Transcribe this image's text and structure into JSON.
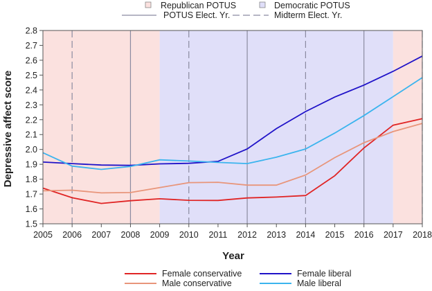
{
  "chart_data": {
    "type": "line",
    "title": "",
    "xlabel": "Year",
    "ylabel": "Depressive affect score",
    "x": [
      2005,
      2006,
      2007,
      2008,
      2009,
      2010,
      2011,
      2012,
      2013,
      2014,
      2015,
      2016,
      2017,
      2018
    ],
    "xlim": [
      2005,
      2018
    ],
    "ylim": [
      1.5,
      2.8
    ],
    "yticks": [
      "1.5",
      "1.6",
      "1.7",
      "1.8",
      "1.9",
      "2.0",
      "2.1",
      "2.2",
      "2.3",
      "2.4",
      "2.5",
      "2.6",
      "2.7",
      "2.8"
    ],
    "grid": false,
    "legend_position": "bottom",
    "series": [
      {
        "name": "Female conservative",
        "color": "#e02424",
        "values": [
          1.74,
          1.675,
          1.637,
          1.655,
          1.668,
          1.658,
          1.657,
          1.674,
          1.68,
          1.69,
          1.823,
          2.01,
          2.163,
          2.207
        ]
      },
      {
        "name": "Male conservative",
        "color": "#e8957a",
        "values": [
          1.722,
          1.726,
          1.708,
          1.71,
          1.743,
          1.777,
          1.779,
          1.76,
          1.76,
          1.828,
          1.945,
          2.045,
          2.12,
          2.175
        ]
      },
      {
        "name": "Female liberal",
        "color": "#1f12c8",
        "values": [
          1.915,
          1.905,
          1.895,
          1.893,
          1.903,
          1.907,
          1.92,
          2.003,
          2.14,
          2.255,
          2.352,
          2.433,
          2.525,
          2.628
        ]
      },
      {
        "name": "Male liberal",
        "color": "#3bb4ee",
        "values": [
          1.978,
          1.888,
          1.866,
          1.886,
          1.93,
          1.922,
          1.913,
          1.905,
          1.948,
          2.003,
          2.11,
          2.228,
          2.355,
          2.483
        ]
      }
    ],
    "shading": [
      {
        "label": "Republican POTUS",
        "color": "#fbe1df",
        "from": 2005,
        "to": 2009
      },
      {
        "label": "Democratic POTUS",
        "color": "#e0dff9",
        "from": 2009,
        "to": 2017
      },
      {
        "label": "Republican POTUS",
        "color": "#fbe1df",
        "from": 2017,
        "to": 2018
      }
    ],
    "presidential_election_years": [
      2008,
      2012,
      2016
    ],
    "midterm_election_years": [
      2006,
      2010,
      2014,
      2018
    ],
    "top_legend": {
      "republican": "Republican POTUS",
      "democratic": "Democratic POTUS",
      "potus_elect": "POTUS Elect. Yr.",
      "midterm_elect": "Midterm Elect. Yr."
    },
    "colors": {
      "republican_fill": "#fbe1df",
      "democratic_fill": "#e0dff9",
      "election_line": "#8a8aa0"
    }
  }
}
